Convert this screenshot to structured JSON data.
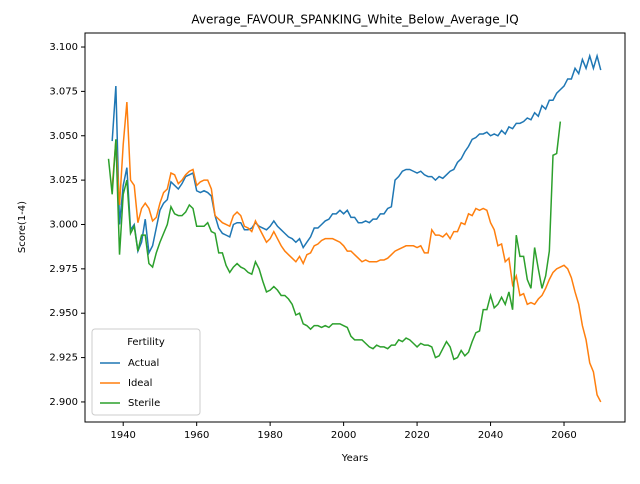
{
  "chart_data": {
    "type": "line",
    "title": "Average_FAVOUR_SPANKING_White_Below_Average_IQ",
    "xlabel": "Years",
    "ylabel": "Score(1-4)",
    "xlim": [
      1929.6,
      2076.6
    ],
    "xticks": [
      1940,
      1960,
      1980,
      2000,
      2020,
      2040,
      2060
    ],
    "ylim": [
      2.8887,
      3.1079
    ],
    "yticks": [
      {
        "value": 2.9,
        "label": "2.900"
      },
      2.925,
      {
        "value": 2.95,
        "label": "2.950"
      },
      2.975,
      {
        "value": 3.0,
        "label": "3.000"
      },
      3.025,
      {
        "value": 3.05,
        "label": "3.050"
      },
      3.075,
      {
        "value": 3.1,
        "label": "3.100"
      }
    ],
    "grid": false,
    "legend_title": "Fertility",
    "legend_position": "lower left",
    "x": [
      1936,
      1937,
      1938,
      1939,
      1940,
      1941,
      1942,
      1943,
      1944,
      1945,
      1946,
      1947,
      1948,
      1949,
      1950,
      1951,
      1952,
      1953,
      1954,
      1955,
      1956,
      1957,
      1958,
      1959,
      1960,
      1961,
      1962,
      1963,
      1964,
      1965,
      1966,
      1967,
      1968,
      1969,
      1970,
      1971,
      1972,
      1973,
      1974,
      1975,
      1976,
      1977,
      1978,
      1979,
      1980,
      1981,
      1982,
      1983,
      1984,
      1985,
      1986,
      1987,
      1988,
      1989,
      1990,
      1991,
      1992,
      1993,
      1994,
      1995,
      1996,
      1997,
      1998,
      1999,
      2000,
      2001,
      2002,
      2003,
      2004,
      2005,
      2006,
      2007,
      2008,
      2009,
      2010,
      2011,
      2012,
      2013,
      2014,
      2015,
      2016,
      2017,
      2018,
      2019,
      2020,
      2021,
      2022,
      2023,
      2024,
      2025,
      2026,
      2027,
      2028,
      2029,
      2030,
      2031,
      2032,
      2033,
      2034,
      2035,
      2036,
      2037,
      2038,
      2039,
      2040,
      2041,
      2042,
      2043,
      2044,
      2045,
      2046,
      2047,
      2048,
      2049,
      2050,
      2051,
      2052,
      2053,
      2054,
      2055,
      2056,
      2057,
      2058,
      2059,
      2060,
      2061,
      2062,
      2063,
      2064,
      2065,
      2066,
      2067,
      2068,
      2069,
      2070
    ],
    "series": [
      {
        "name": "Actual",
        "color": "#1f77b4",
        "values": [
          null,
          3.047,
          3.078,
          3.0,
          3.022,
          3.032,
          2.997,
          3.0,
          2.985,
          2.99,
          3.003,
          2.984,
          2.988,
          2.998,
          3.008,
          3.012,
          3.014,
          3.024,
          3.022,
          3.02,
          3.023,
          3.027,
          3.028,
          3.029,
          3.019,
          3.018,
          3.019,
          3.018,
          3.016,
          3.005,
          2.998,
          2.995,
          2.994,
          2.993,
          3.0,
          3.001,
          3.001,
          2.997,
          2.997,
          2.998,
          3.001,
          2.999,
          2.998,
          2.997,
          2.999,
          3.002,
          2.999,
          2.997,
          2.995,
          2.993,
          2.992,
          2.99,
          2.992,
          2.987,
          2.99,
          2.993,
          2.998,
          2.998,
          3.0,
          3.002,
          3.003,
          3.006,
          3.006,
          3.008,
          3.006,
          3.008,
          3.004,
          3.004,
          3.001,
          3.001,
          3.002,
          3.001,
          3.003,
          3.003,
          3.006,
          3.006,
          3.009,
          3.01,
          3.025,
          3.027,
          3.03,
          3.031,
          3.031,
          3.03,
          3.029,
          3.03,
          3.028,
          3.027,
          3.027,
          3.025,
          3.027,
          3.026,
          3.028,
          3.03,
          3.031,
          3.035,
          3.037,
          3.041,
          3.044,
          3.048,
          3.049,
          3.051,
          3.051,
          3.052,
          3.05,
          3.051,
          3.05,
          3.053,
          3.051,
          3.055,
          3.054,
          3.057,
          3.057,
          3.058,
          3.06,
          3.059,
          3.063,
          3.061,
          3.067,
          3.065,
          3.07,
          3.07,
          3.074,
          3.076,
          3.078,
          3.082,
          3.082,
          3.088,
          3.085,
          3.093,
          3.088,
          3.095,
          3.088,
          3.095,
          3.087
        ]
      },
      {
        "name": "Ideal",
        "color": "#ff7f0e",
        "values": [
          null,
          3.021,
          3.047,
          3.011,
          3.045,
          3.069,
          3.025,
          3.022,
          3.001,
          3.009,
          3.012,
          3.009,
          3.002,
          3.004,
          3.012,
          3.018,
          3.02,
          3.029,
          3.028,
          3.023,
          3.025,
          3.028,
          3.03,
          3.031,
          3.022,
          3.024,
          3.025,
          3.025,
          3.02,
          3.005,
          3.003,
          3.001,
          3.0,
          2.999,
          3.005,
          3.007,
          3.005,
          2.999,
          2.998,
          2.996,
          3.002,
          2.998,
          2.994,
          2.99,
          2.992,
          2.996,
          2.992,
          2.988,
          2.985,
          2.983,
          2.981,
          2.979,
          2.982,
          2.978,
          2.983,
          2.984,
          2.988,
          2.989,
          2.991,
          2.992,
          2.992,
          2.992,
          2.991,
          2.99,
          2.988,
          2.985,
          2.985,
          2.983,
          2.981,
          2.979,
          2.98,
          2.979,
          2.979,
          2.979,
          2.98,
          2.98,
          2.981,
          2.983,
          2.985,
          2.986,
          2.987,
          2.988,
          2.988,
          2.988,
          2.987,
          2.988,
          2.984,
          2.984,
          2.997,
          2.994,
          2.994,
          2.993,
          2.995,
          2.992,
          2.996,
          2.996,
          3.001,
          3.0,
          3.006,
          3.005,
          3.009,
          3.008,
          3.009,
          3.008,
          3.001,
          2.997,
          2.988,
          2.989,
          2.979,
          2.981,
          2.966,
          2.971,
          2.96,
          2.961,
          2.955,
          2.956,
          2.955,
          2.958,
          2.96,
          2.964,
          2.969,
          2.973,
          2.975,
          2.976,
          2.977,
          2.975,
          2.97,
          2.962,
          2.955,
          2.943,
          2.935,
          2.922,
          2.917,
          2.904,
          2.9
        ]
      },
      {
        "name": "Sterile",
        "color": "#2ca02c",
        "values": [
          3.037,
          3.017,
          3.048,
          2.983,
          3.017,
          3.025,
          2.995,
          2.999,
          2.985,
          2.994,
          2.994,
          2.978,
          2.976,
          2.984,
          2.99,
          2.995,
          3.0,
          3.01,
          3.006,
          3.005,
          3.005,
          3.007,
          3.011,
          3.009,
          2.999,
          2.999,
          2.999,
          3.001,
          2.996,
          2.995,
          2.984,
          2.984,
          2.977,
          2.973,
          2.976,
          2.978,
          2.976,
          2.975,
          2.973,
          2.972,
          2.979,
          2.975,
          2.968,
          2.962,
          2.963,
          2.965,
          2.963,
          2.96,
          2.96,
          2.958,
          2.955,
          2.949,
          2.95,
          2.944,
          2.943,
          2.941,
          2.943,
          2.943,
          2.942,
          2.943,
          2.942,
          2.944,
          2.944,
          2.944,
          2.943,
          2.942,
          2.937,
          2.935,
          2.935,
          2.935,
          2.933,
          2.931,
          2.93,
          2.932,
          2.931,
          2.931,
          2.93,
          2.932,
          2.932,
          2.935,
          2.934,
          2.936,
          2.935,
          2.933,
          2.931,
          2.933,
          2.932,
          2.932,
          2.931,
          2.925,
          2.926,
          2.93,
          2.934,
          2.931,
          2.924,
          2.925,
          2.929,
          2.926,
          2.928,
          2.934,
          2.939,
          2.94,
          2.952,
          2.952,
          2.96,
          2.953,
          2.955,
          2.959,
          2.955,
          2.962,
          2.952,
          2.994,
          2.982,
          2.982,
          2.969,
          2.964,
          2.987,
          2.975,
          2.964,
          2.971,
          2.985,
          3.039,
          3.04,
          3.058,
          null,
          null,
          null,
          null,
          null,
          null,
          null,
          null,
          null,
          null,
          null
        ]
      }
    ]
  }
}
